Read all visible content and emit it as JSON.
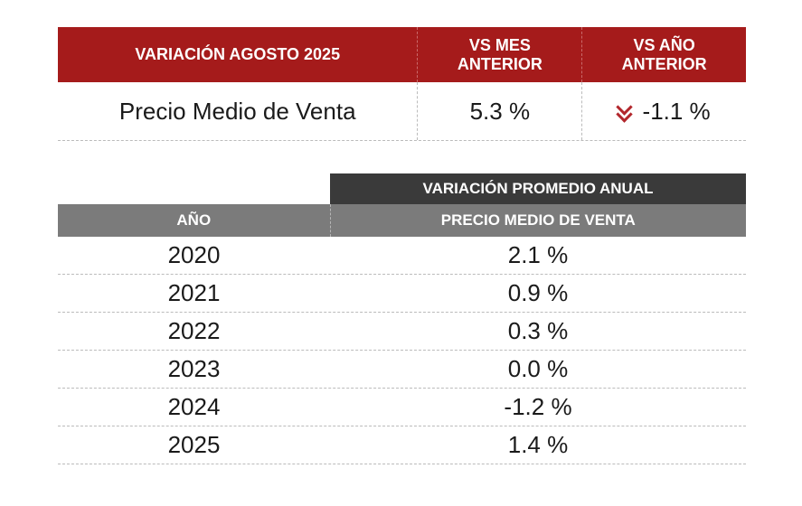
{
  "summary_table": {
    "header": {
      "col1": "VARIACIÓN AGOSTO 2025",
      "col2_line1": "VS MES",
      "col2_line2": "ANTERIOR",
      "col3_line1": "VS AÑO",
      "col3_line2": "ANTERIOR"
    },
    "row": {
      "label": "Precio Medio de Venta",
      "vs_mes_anterior": "5.3 %",
      "vs_ano_anterior": "-1.1 %",
      "trend_icon": "double-chevron-down-icon",
      "trend_color": "#b2262c"
    }
  },
  "annual_table": {
    "super_header": "VARIACIÓN PROMEDIO ANUAL",
    "header": {
      "year": "AÑO",
      "value": "PRECIO MEDIO DE VENTA"
    },
    "rows": [
      {
        "year": "2020",
        "value": "2.1 %"
      },
      {
        "year": "2021",
        "value": "0.9 %"
      },
      {
        "year": "2022",
        "value": "0.3 %"
      },
      {
        "year": "2023",
        "value": "0.0 %"
      },
      {
        "year": "2024",
        "value": "-1.2 %"
      },
      {
        "year": "2025",
        "value": "1.4 %"
      }
    ]
  },
  "colors": {
    "header_red": "#a51b1b",
    "header_dark": "#3a3a3a",
    "header_gray": "#7b7b7b"
  }
}
